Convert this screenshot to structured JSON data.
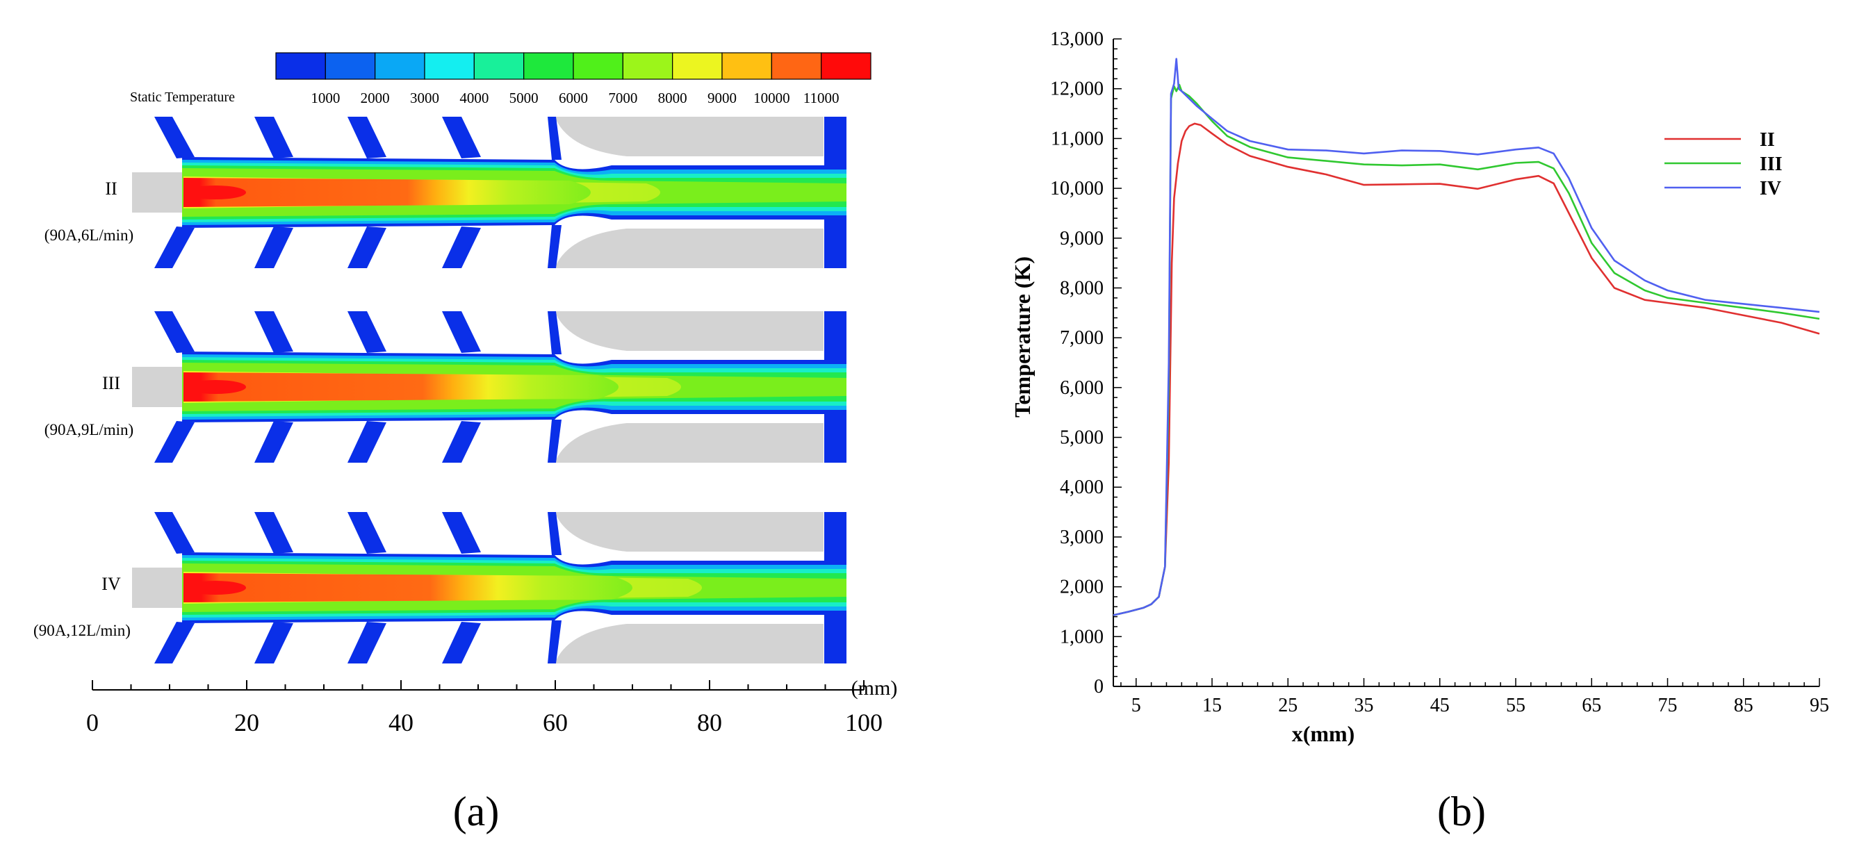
{
  "panel_a": {
    "label": "(a)",
    "colorbar": {
      "title": "Static Temperature",
      "ticks": [
        "1000",
        "2000",
        "3000",
        "4000",
        "5000",
        "6000",
        "7000",
        "8000",
        "9000",
        "10000",
        "11000"
      ],
      "colors": [
        "#0a2fe8",
        "#0c62f0",
        "#0aa8f5",
        "#14eef0",
        "#18f09a",
        "#1ee83c",
        "#50f01a",
        "#9cf51a",
        "#ecf520",
        "#ffc012",
        "#ff6614",
        "#ff0a0a"
      ]
    },
    "cases": [
      {
        "name": "II",
        "condition": "(90A,6L/min)"
      },
      {
        "name": "III",
        "condition": "(90A,9L/min)"
      },
      {
        "name": "IV",
        "condition": "(90A,12L/min)"
      }
    ],
    "axis": {
      "unit": "(mm)",
      "ticks": [
        "0",
        "20",
        "40",
        "60",
        "80",
        "100"
      ]
    },
    "wall_color": "#d3d3d3"
  },
  "panel_b": {
    "label": "(b)"
  },
  "chart_data": [
    {
      "type": "contour",
      "title": "Static Temperature",
      "xlabel": "(mm)",
      "xlim": [
        0,
        100
      ],
      "colorbar_range": [
        1000,
        11000
      ],
      "cases": [
        "II (90A,6L/min)",
        "III (90A,9L/min)",
        "IV (90A,12L/min)"
      ]
    },
    {
      "type": "line",
      "xlabel": "x(mm)",
      "ylabel": "Temperature (K)",
      "xlim": [
        2,
        95
      ],
      "ylim": [
        0,
        13000
      ],
      "x_ticks": [
        "5",
        "15",
        "25",
        "35",
        "45",
        "55",
        "65",
        "75",
        "85",
        "95"
      ],
      "y_ticks": [
        "0",
        "1,000",
        "2,000",
        "3,000",
        "4,000",
        "5,000",
        "6,000",
        "7,000",
        "8,000",
        "9,000",
        "10,000",
        "11,000",
        "12,000",
        "13,000"
      ],
      "legend_position": "top-right",
      "series": [
        {
          "name": "II",
          "color": "#e03030",
          "x": [
            2,
            4,
            6,
            7,
            8,
            8.8,
            9.3,
            9.7,
            10,
            10.5,
            11,
            11.5,
            12,
            12.7,
            13.5,
            15,
            17,
            20,
            25,
            30,
            35,
            40,
            45,
            50,
            55,
            58,
            60,
            62,
            65,
            68,
            72,
            75,
            80,
            85,
            90,
            95
          ],
          "y": [
            1430,
            1500,
            1580,
            1650,
            1800,
            2400,
            4500,
            8500,
            9800,
            10500,
            10950,
            11150,
            11250,
            11300,
            11270,
            11100,
            10880,
            10650,
            10430,
            10280,
            10070,
            10080,
            10090,
            9990,
            10180,
            10250,
            10100,
            9500,
            8600,
            8000,
            7760,
            7700,
            7600,
            7450,
            7300,
            7080
          ]
        },
        {
          "name": "III",
          "color": "#30c830",
          "x": [
            2,
            4,
            6,
            7,
            8,
            8.8,
            9.3,
            9.6,
            10,
            10.3,
            10.7,
            11,
            12,
            13,
            15,
            17,
            20,
            25,
            30,
            35,
            40,
            45,
            50,
            55,
            58,
            60,
            62,
            65,
            68,
            72,
            75,
            80,
            85,
            90,
            95
          ],
          "y": [
            1430,
            1500,
            1580,
            1650,
            1800,
            2400,
            6000,
            11800,
            12050,
            11950,
            12080,
            11950,
            11850,
            11700,
            11350,
            11050,
            10830,
            10620,
            10550,
            10480,
            10460,
            10480,
            10380,
            10510,
            10530,
            10400,
            9900,
            8900,
            8300,
            7950,
            7800,
            7700,
            7600,
            7500,
            7380
          ]
        },
        {
          "name": "IV",
          "color": "#5060f0",
          "x": [
            2,
            4,
            6,
            7,
            8,
            8.8,
            9.3,
            9.6,
            10,
            10.3,
            10.6,
            11,
            12,
            13,
            15,
            17,
            20,
            25,
            30,
            35,
            40,
            45,
            50,
            55,
            58,
            60,
            62,
            65,
            68,
            72,
            75,
            80,
            85,
            90,
            95
          ],
          "y": [
            1430,
            1500,
            1580,
            1650,
            1800,
            2400,
            6500,
            11900,
            12100,
            12600,
            12000,
            11950,
            11800,
            11650,
            11400,
            11150,
            10950,
            10780,
            10760,
            10700,
            10760,
            10750,
            10680,
            10780,
            10820,
            10700,
            10200,
            9200,
            8550,
            8150,
            7950,
            7760,
            7680,
            7600,
            7520
          ]
        }
      ]
    }
  ]
}
